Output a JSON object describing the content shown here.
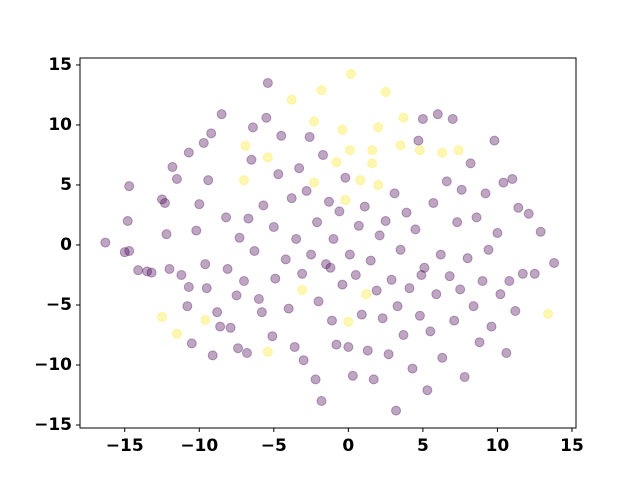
{
  "chart_data": {
    "type": "scatter",
    "xlim": [
      -18.0,
      15.27
    ],
    "ylim": [
      -15.25,
      15.58
    ],
    "xticks": [
      {
        "value": -15,
        "label": "−15"
      },
      {
        "value": -10,
        "label": "−10"
      },
      {
        "value": -5,
        "label": "−5"
      },
      0,
      5,
      10,
      15
    ],
    "yticks": [
      {
        "value": -15,
        "label": "−15"
      },
      {
        "value": -10,
        "label": "−10"
      },
      {
        "value": -5,
        "label": "−5"
      },
      0,
      5,
      10,
      15
    ],
    "alpha": 0.35,
    "series": [
      {
        "color": "#440154",
        "x": [
          -16.3,
          -14.7,
          -14.8,
          -14.7,
          -13.5,
          -14.1,
          -12.5,
          -12.3,
          -12.2,
          -12.0,
          -11.8,
          -11.5,
          -11.2,
          -10.8,
          -10.7,
          -10.5,
          -10.7,
          -10.2,
          -10.0,
          -9.7,
          -9.4,
          -9.2,
          -9.6,
          -9.5,
          -9.1,
          -8.8,
          -8.5,
          -8.6,
          -8.2,
          -8.1,
          -7.9,
          -7.5,
          -7.4,
          -7.3,
          -7.0,
          -6.8,
          -6.7,
          -6.5,
          -6.3,
          -6.4,
          -6.0,
          -5.8,
          -5.7,
          -5.5,
          -5.4,
          -5.1,
          -5.0,
          -4.9,
          -4.7,
          -4.5,
          -4.2,
          -4.0,
          -3.8,
          -3.6,
          -3.5,
          -3.3,
          -3.1,
          -3.0,
          -2.8,
          -2.6,
          -2.5,
          -2.2,
          -2.1,
          -2.0,
          -1.8,
          -1.7,
          -1.5,
          -1.3,
          -1.1,
          -1.0,
          -0.8,
          -0.6,
          -0.4,
          -0.2,
          0.1,
          0.3,
          0.5,
          0.7,
          0.9,
          1.1,
          1.3,
          1.5,
          1.7,
          1.9,
          2.1,
          2.3,
          2.5,
          2.7,
          2.9,
          3.1,
          3.2,
          3.3,
          3.5,
          3.7,
          3.9,
          4.1,
          4.3,
          4.5,
          4.7,
          4.8,
          5.0,
          5.1,
          5.3,
          5.5,
          5.7,
          5.9,
          6.0,
          6.2,
          6.3,
          6.6,
          6.8,
          7.0,
          7.1,
          7.3,
          7.5,
          7.6,
          7.8,
          8.0,
          8.2,
          8.4,
          8.6,
          8.8,
          9.0,
          9.2,
          9.4,
          9.6,
          9.8,
          10.0,
          10.2,
          10.4,
          10.6,
          10.8,
          11.0,
          11.2,
          11.4,
          11.7,
          12.1,
          12.5,
          12.9,
          13.8,
          4.9,
          -1.2,
          0.0,
          -13.2,
          -15.0
        ],
        "values": [
          0.2,
          -0.5,
          2,
          4.9,
          -2.2,
          -2.1,
          3.8,
          3.5,
          0.9,
          -2.0,
          6.5,
          5.5,
          -2.5,
          -5.1,
          -3.5,
          -8.2,
          7.7,
          1.2,
          3.4,
          8.5,
          5.4,
          9.3,
          -1.6,
          -3.6,
          -9.2,
          -5.6,
          10.9,
          -6.8,
          2.3,
          -2.0,
          -6.9,
          -4.2,
          -8.6,
          0.6,
          -3.0,
          -9.0,
          2.2,
          7.1,
          -0.5,
          9.8,
          -4.5,
          -5.6,
          3.3,
          10.6,
          13.5,
          -7.6,
          1.5,
          -2.8,
          5.9,
          9.1,
          -1.2,
          -5.3,
          3.9,
          -8.5,
          0.5,
          6.4,
          -2.4,
          -9.6,
          4.5,
          9.0,
          -0.8,
          -11.2,
          1.9,
          -4.7,
          -13.0,
          7.5,
          -1.6,
          3.6,
          -6.3,
          0.5,
          -8.3,
          2.8,
          -3.3,
          5.6,
          -0.8,
          -10.9,
          -2.5,
          1.6,
          -5.8,
          3.2,
          -8.8,
          -1.3,
          -11.2,
          -3.8,
          0.8,
          -6.1,
          2.0,
          -9.1,
          -2.9,
          4.3,
          -13.8,
          -5.1,
          -0.4,
          -7.5,
          2.7,
          -3.6,
          -10.3,
          1.3,
          8.7,
          -5.9,
          10.5,
          -1.9,
          -12.1,
          -7.2,
          3.5,
          -4.1,
          10.9,
          -0.8,
          -9.4,
          5.3,
          -2.6,
          10.5,
          -6.3,
          1.9,
          -3.7,
          4.6,
          -11.0,
          -1.1,
          6.8,
          -5.1,
          2.3,
          -8.1,
          -3.0,
          4.3,
          -0.4,
          -6.8,
          8.7,
          1.0,
          -4.1,
          5.2,
          -9.0,
          -3.0,
          5.5,
          -5.5,
          3.1,
          -2.4,
          2.6,
          -2.4,
          1.1,
          -1.5,
          -2.5,
          -1.9,
          -8.5,
          -2.3,
          -0.6
        ]
      },
      {
        "color": "#fde725",
        "x": [
          0.17,
          -3.8,
          -1.8,
          2.5,
          -2.3,
          -0.4,
          2.0,
          3.7,
          0.1,
          1.6,
          3.5,
          1.6,
          -0.8,
          0.8,
          2.0,
          4.8,
          6.3,
          7.4,
          -6.9,
          -5.4,
          -7.0,
          -0.2,
          -12.5,
          -11.5,
          -9.6,
          -5.4,
          -3.1,
          1.2,
          0.0,
          13.4,
          -2.3
        ],
        "values": [
          14.25,
          12.1,
          12.9,
          12.75,
          10.3,
          9.6,
          9.8,
          10.6,
          7.9,
          7.9,
          8.3,
          6.8,
          6.9,
          5.4,
          5.0,
          7.9,
          7.7,
          7.9,
          8.25,
          7.3,
          5.4,
          3.75,
          -6.0,
          -7.4,
          -6.25,
          -8.9,
          -3.75,
          -4.1,
          -6.4,
          -5.75,
          5.2
        ]
      }
    ]
  }
}
